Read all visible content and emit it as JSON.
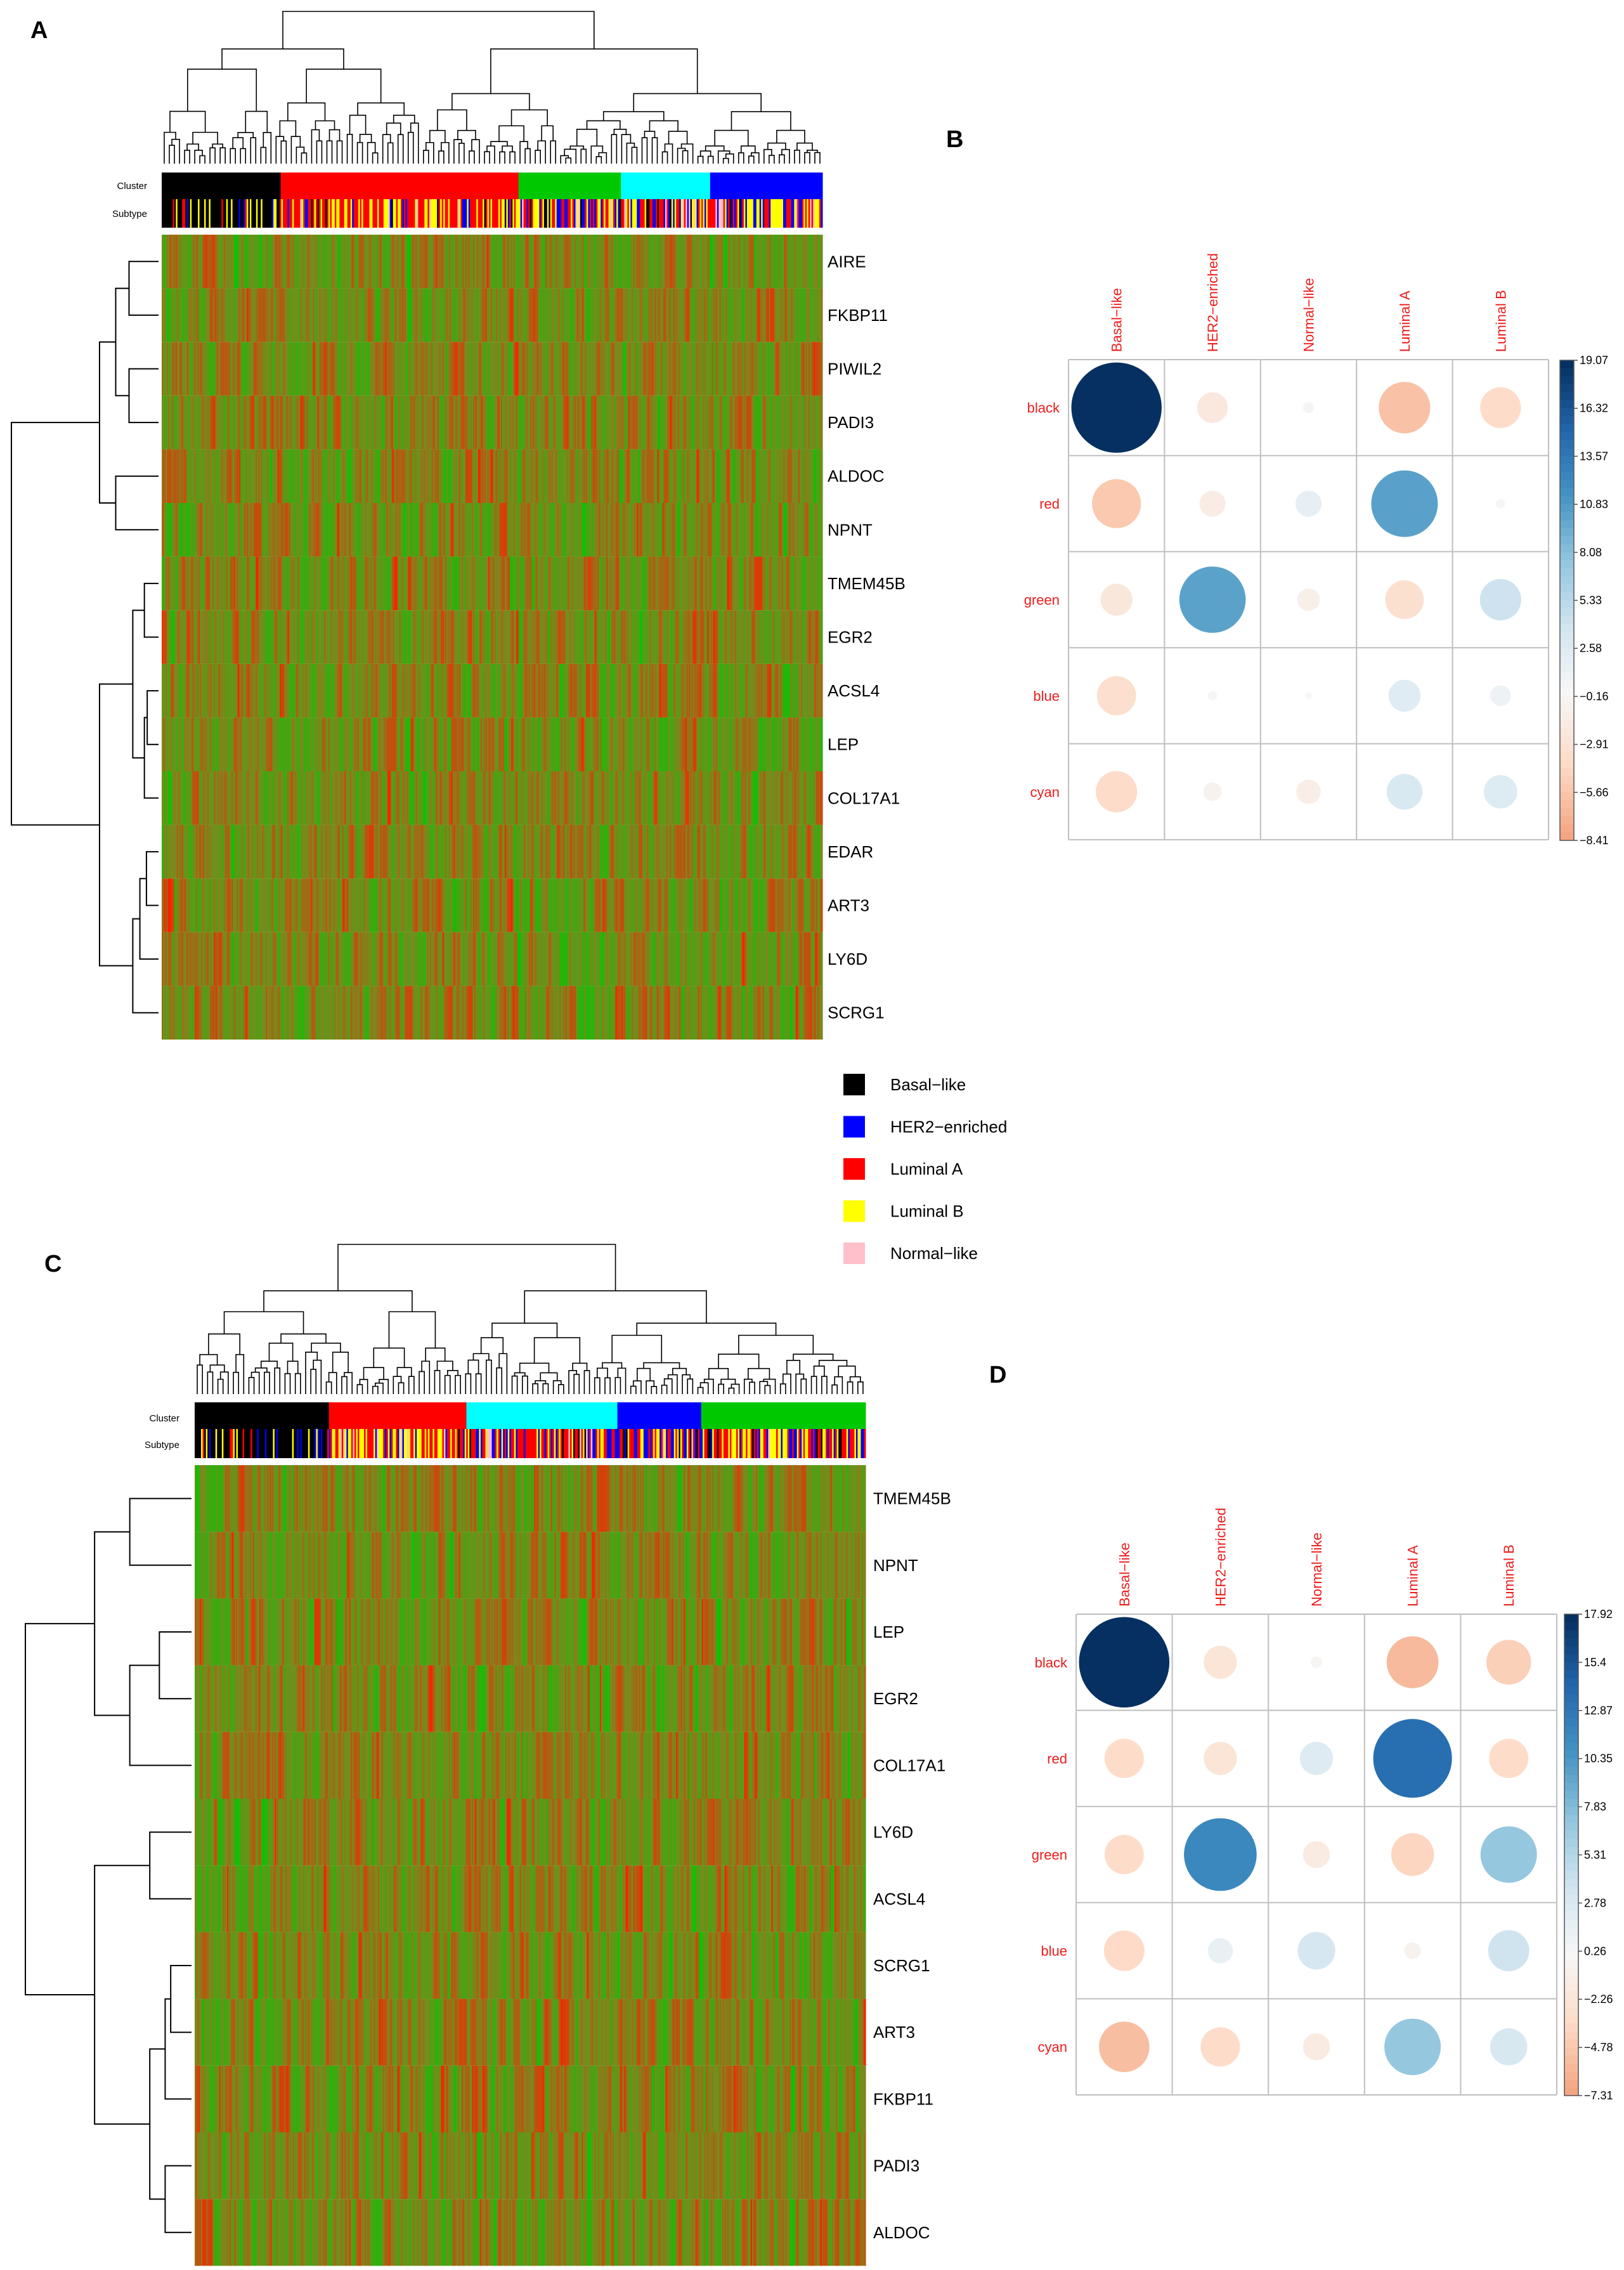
{
  "colors": {
    "heat_low": "#00c800",
    "heat_mid": "#7a8a1e",
    "heat_high": "#ff1e00",
    "corr_text": "#ee1c1c",
    "grid": "#bfbfbf"
  },
  "legend": {
    "items": [
      {
        "label": "Basal−like",
        "color": "#000000"
      },
      {
        "label": "HER2−enriched",
        "color": "#0000ff"
      },
      {
        "label": "Luminal A",
        "color": "#ff0000"
      },
      {
        "label": "Luminal B",
        "color": "#ffff00"
      },
      {
        "label": "Normal−like",
        "color": "#ffc0cb"
      }
    ]
  },
  "chart_data": [
    {
      "panel": "A",
      "type": "heatmap",
      "annotation_labels": [
        "Cluster",
        "Subtype"
      ],
      "genes": [
        "AIRE",
        "FKBP11",
        "PIWIL2",
        "PADI3",
        "ALDOC",
        "NPNT",
        "TMEM45B",
        "EGR2",
        "ACSL4",
        "LEP",
        "COL17A1",
        "EDAR",
        "ART3",
        "LY6D",
        "SCRG1"
      ],
      "cluster_bar": [
        {
          "cluster": "black",
          "color": "#000000",
          "fraction": 0.18
        },
        {
          "cluster": "red",
          "color": "#ff0000",
          "fraction": 0.36
        },
        {
          "cluster": "green",
          "color": "#00c800",
          "fraction": 0.155
        },
        {
          "cluster": "cyan",
          "color": "#00ffff",
          "fraction": 0.135
        },
        {
          "cluster": "blue",
          "color": "#0000ff",
          "fraction": 0.17
        }
      ]
    },
    {
      "panel": "B",
      "type": "heatmap",
      "subtype": "correlation-circle",
      "columns": [
        "Basal−like",
        "HER2−enriched",
        "Normal−like",
        "Luminal A",
        "Luminal B"
      ],
      "rows": [
        "black",
        "red",
        "green",
        "blue",
        "cyan"
      ],
      "values": [
        [
          19.07,
          -2.2,
          -0.3,
          -6.2,
          -3.9
        ],
        [
          -5.6,
          -1.6,
          1.6,
          10.4,
          -0.2
        ],
        [
          -2.4,
          10.3,
          -1.2,
          -3.5,
          4.0
        ],
        [
          -3.6,
          -0.2,
          -0.1,
          2.4,
          1.0
        ],
        [
          -4.0,
          -0.8,
          -1.4,
          3.0,
          2.6
        ]
      ],
      "scale_ticks": [
        "19.07",
        "16.32",
        "13.57",
        "10.83",
        "8.08",
        "5.33",
        "2.58",
        "−0.16",
        "−2.91",
        "−5.66",
        "−8.41"
      ],
      "scale_range": [
        -8.41,
        19.07
      ]
    },
    {
      "panel": "C",
      "type": "heatmap",
      "annotation_labels": [
        "Cluster",
        "Subtype"
      ],
      "genes": [
        "TMEM45B",
        "NPNT",
        "LEP",
        "EGR2",
        "COL17A1",
        "LY6D",
        "ACSL4",
        "SCRG1",
        "ART3",
        "FKBP11",
        "PADI3",
        "ALDOC"
      ],
      "cluster_bar": [
        {
          "cluster": "black",
          "color": "#000000",
          "fraction": 0.2
        },
        {
          "cluster": "red",
          "color": "#ff0000",
          "fraction": 0.205
        },
        {
          "cluster": "cyan",
          "color": "#00ffff",
          "fraction": 0.225
        },
        {
          "cluster": "blue",
          "color": "#0000ff",
          "fraction": 0.125
        },
        {
          "cluster": "green",
          "color": "#00c800",
          "fraction": 0.245
        }
      ]
    },
    {
      "panel": "D",
      "type": "heatmap",
      "subtype": "correlation-circle",
      "columns": [
        "Basal−like",
        "HER2−enriched",
        "Normal−like",
        "Luminal A",
        "Luminal B"
      ],
      "rows": [
        "black",
        "red",
        "green",
        "blue",
        "cyan"
      ],
      "values": [
        [
          17.92,
          -2.4,
          -0.3,
          -5.9,
          -4.4
        ],
        [
          -3.4,
          -2.4,
          2.4,
          13.6,
          -3.4
        ],
        [
          -3.4,
          11.6,
          -1.6,
          -4.0,
          7.0
        ],
        [
          -3.6,
          1.4,
          3.1,
          -0.6,
          3.7
        ],
        [
          -5.6,
          -3.4,
          -1.6,
          7.0,
          3.0
        ]
      ],
      "scale_ticks": [
        "17.92",
        "15.4",
        "12.87",
        "10.35",
        "7.83",
        "5.31",
        "2.78",
        "0.26",
        "−2.26",
        "−4.78",
        "−7.31"
      ],
      "scale_range": [
        -7.31,
        17.92
      ]
    }
  ]
}
